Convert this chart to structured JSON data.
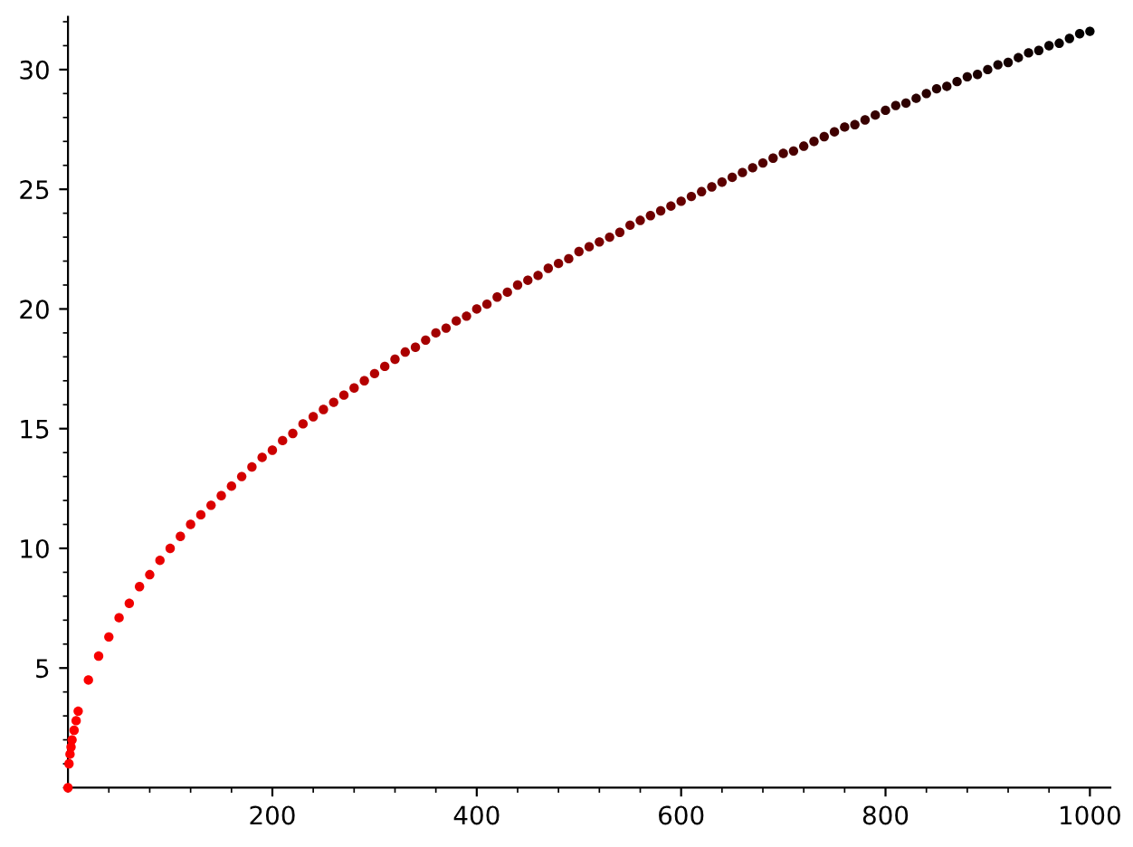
{
  "chart_data": {
    "type": "scatter",
    "marker": "circle",
    "x": [
      0,
      1,
      2,
      3,
      4,
      6,
      8,
      10,
      20,
      30,
      40,
      50,
      60,
      70,
      80,
      90,
      100,
      110,
      120,
      130,
      140,
      150,
      160,
      170,
      180,
      190,
      200,
      210,
      220,
      230,
      240,
      250,
      260,
      270,
      280,
      290,
      300,
      310,
      320,
      330,
      340,
      350,
      360,
      370,
      380,
      390,
      400,
      410,
      420,
      430,
      440,
      450,
      460,
      470,
      480,
      490,
      500,
      510,
      520,
      530,
      540,
      550,
      560,
      570,
      580,
      590,
      600,
      610,
      620,
      630,
      640,
      650,
      660,
      670,
      680,
      690,
      700,
      710,
      720,
      730,
      740,
      750,
      760,
      770,
      780,
      790,
      800,
      810,
      820,
      830,
      840,
      850,
      860,
      870,
      880,
      890,
      900,
      910,
      920,
      930,
      940,
      950,
      960,
      970,
      980,
      990,
      1000
    ],
    "values": [
      0,
      1,
      1.4,
      1.7,
      2,
      2.4,
      2.8,
      3.2,
      4.5,
      5.5,
      6.3,
      7.1,
      7.7,
      8.4,
      8.9,
      9.5,
      10,
      10.5,
      11.0,
      11.4,
      11.8,
      12.2,
      12.6,
      13.0,
      13.4,
      13.8,
      14.1,
      14.5,
      14.8,
      15.2,
      15.5,
      15.8,
      16.1,
      16.4,
      16.7,
      17.0,
      17.3,
      17.6,
      17.9,
      18.2,
      18.4,
      18.7,
      19.0,
      19.2,
      19.5,
      19.7,
      20,
      20.2,
      20.5,
      20.7,
      21.0,
      21.2,
      21.4,
      21.7,
      21.9,
      22.1,
      22.4,
      22.6,
      22.8,
      23.0,
      23.2,
      23.5,
      23.7,
      23.9,
      24.1,
      24.3,
      24.5,
      24.7,
      24.9,
      25.1,
      25.3,
      25.5,
      25.7,
      25.9,
      26.1,
      26.3,
      26.5,
      26.6,
      26.8,
      27.0,
      27.2,
      27.4,
      27.6,
      27.7,
      27.9,
      28.1,
      28.3,
      28.5,
      28.6,
      28.8,
      29.0,
      29.2,
      29.3,
      29.5,
      29.7,
      29.8,
      30,
      30.2,
      30.3,
      30.5,
      30.7,
      30.8,
      31.0,
      31.1,
      31.3,
      31.5,
      31.6
    ],
    "colors": [
      "#ff0000",
      "#fe0000",
      "#fe0000",
      "#fe0000",
      "#fe0000",
      "#fd0000",
      "#fd0000",
      "#fc0000",
      "#fa0000",
      "#f70000",
      "#f50000",
      "#f20000",
      "#f00000",
      "#ed0000",
      "#eb0000",
      "#e80000",
      "#e60000",
      "#e30000",
      "#e00000",
      "#de0000",
      "#db0000",
      "#d90000",
      "#d60000",
      "#d40000",
      "#d10000",
      "#cf0000",
      "#cc0000",
      "#c90000",
      "#c70000",
      "#c40000",
      "#c20000",
      "#bf0000",
      "#bd0000",
      "#ba0000",
      "#b80000",
      "#b50000",
      "#b20000",
      "#b00000",
      "#ad0000",
      "#ab0000",
      "#a80000",
      "#a60000",
      "#a30000",
      "#a10000",
      "#9e0000",
      "#9c0000",
      "#990000",
      "#960000",
      "#940000",
      "#910000",
      "#8f0000",
      "#8c0000",
      "#8a0000",
      "#870000",
      "#850000",
      "#820000",
      "#800000",
      "#7d0000",
      "#7a0000",
      "#780000",
      "#750000",
      "#730000",
      "#700000",
      "#6e0000",
      "#6b0000",
      "#690000",
      "#660000",
      "#630000",
      "#610000",
      "#5e0000",
      "#5c0000",
      "#590000",
      "#570000",
      "#540000",
      "#520000",
      "#4f0000",
      "#4c0000",
      "#4a0000",
      "#470000",
      "#450000",
      "#420000",
      "#400000",
      "#3d0000",
      "#3b0000",
      "#380000",
      "#360000",
      "#330000",
      "#300000",
      "#2e0000",
      "#2b0000",
      "#290000",
      "#260000",
      "#240000",
      "#210000",
      "#1f0000",
      "#1c0000",
      "#190000",
      "#170000",
      "#140000",
      "#120000",
      "#0f0000",
      "#0d0000",
      "#0a0000",
      "#080000",
      "#050000",
      "#030000",
      "#000000"
    ],
    "xlim": [
      0,
      1020
    ],
    "ylim": [
      0,
      32.2
    ],
    "xticks": [
      200,
      400,
      600,
      800,
      1000
    ],
    "yticks": [
      5,
      10,
      15,
      20,
      25,
      30
    ]
  }
}
